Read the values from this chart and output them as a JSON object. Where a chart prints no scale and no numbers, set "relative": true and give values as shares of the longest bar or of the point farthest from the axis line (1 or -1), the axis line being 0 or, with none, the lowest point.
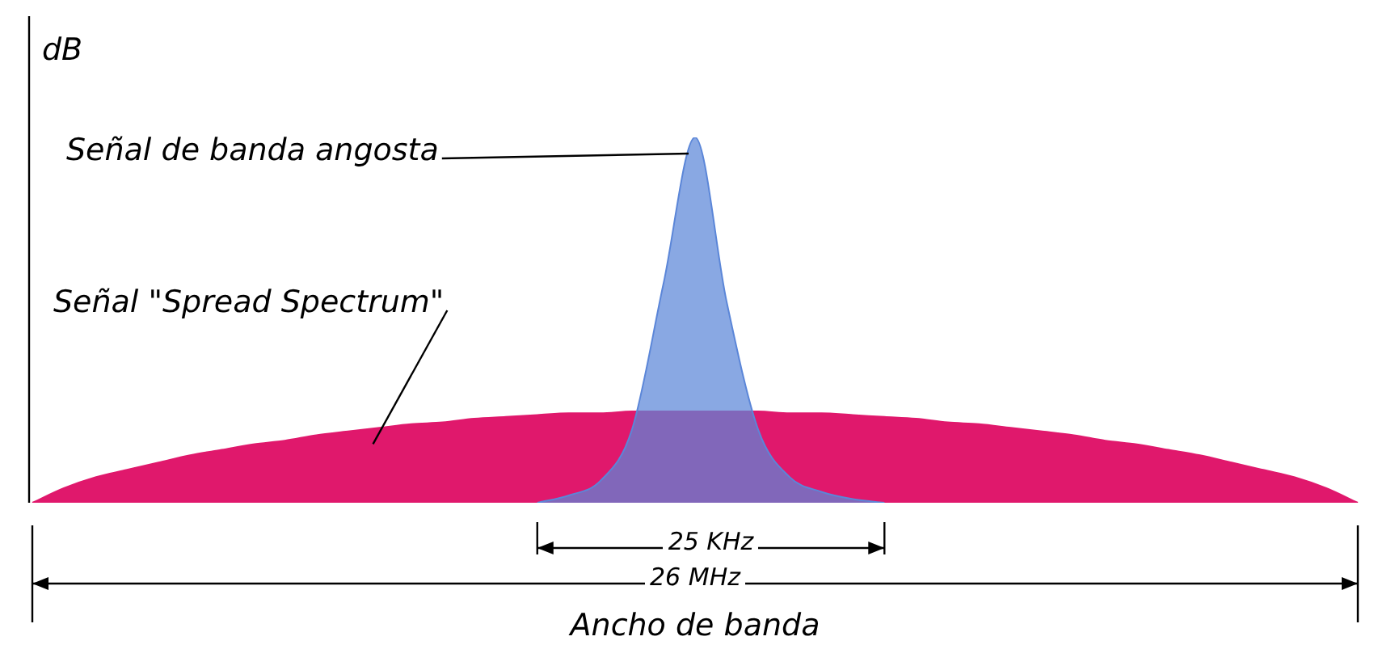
{
  "chart_data": {
    "type": "area",
    "relative": true,
    "ylabel": "dB",
    "xlabel": "Ancho de banda",
    "categories": [
      null,
      null,
      null,
      null,
      null,
      null,
      null,
      null,
      null,
      null,
      null,
      null,
      null,
      null,
      null,
      null,
      null,
      null,
      null,
      null,
      null,
      null,
      null,
      null,
      null,
      null,
      null,
      null,
      null,
      null,
      null,
      null,
      null,
      null,
      null,
      null,
      null,
      null,
      null,
      null,
      null,
      null,
      null
    ],
    "series": [
      {
        "name": "Señal \"Spread Spectrum\"",
        "color": "#e0186c",
        "values": [
          0,
          0.04,
          0.07,
          0.09,
          0.11,
          0.13,
          0.145,
          0.16,
          0.17,
          0.185,
          0.195,
          0.205,
          0.215,
          0.22,
          0.23,
          0.235,
          0.24,
          0.245,
          0.245,
          0.25,
          0.25,
          0.25,
          0.25,
          0.25,
          0.245,
          0.245,
          0.24,
          0.235,
          0.23,
          0.22,
          0.215,
          0.205,
          0.195,
          0.185,
          0.17,
          0.16,
          0.145,
          0.13,
          0.11,
          0.09,
          0.07,
          0.04,
          0
        ]
      },
      {
        "name": "Señal de banda angosta",
        "color": "#5b86d8",
        "values": [
          null,
          null,
          null,
          null,
          null,
          null,
          null,
          null,
          null,
          null,
          null,
          null,
          null,
          null,
          null,
          null,
          0,
          0.02,
          0.06,
          0.2,
          0.6,
          1,
          0.55,
          0.2,
          0.07,
          0.03,
          0.01,
          0,
          null,
          null,
          null,
          null,
          null,
          null,
          null,
          null,
          null,
          null,
          null,
          null,
          null,
          null,
          null
        ]
      }
    ],
    "annotations": [
      "25 KHz",
      "26 MHz"
    ],
    "legend": false
  }
}
